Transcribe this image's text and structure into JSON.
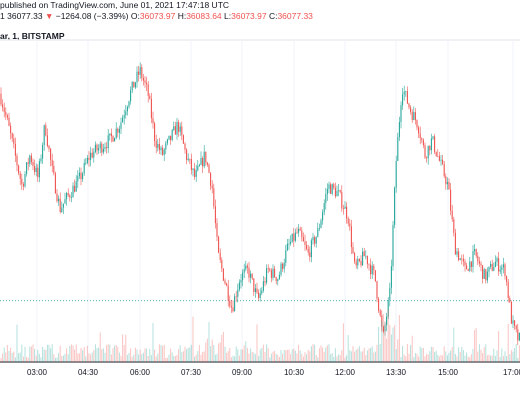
{
  "header": {
    "published_line": "published on TradingView.com, June 01, 2021 17:47:18 UTC",
    "quote_prefix": "1",
    "last": "36077.33",
    "change_arrow": "▼",
    "change": "−1264.08 (−3.39%)",
    "o_label": "O:",
    "o_value": "36073.97",
    "h_label": "H:",
    "h_value": "36083.64",
    "l_label": "L:",
    "l_value": "36073.97",
    "c_label": "C:",
    "c_value": "36077.33",
    "symbol_line": "ar, 1, BITSTAMP"
  },
  "colors": {
    "up": "#26a69a",
    "down": "#ef5350",
    "grid": "#f0f3fa",
    "axis": "#131722",
    "price_line": "#26a69a"
  },
  "chart_data": {
    "type": "candlestick",
    "interval": "1 minute",
    "exchange": "BITSTAMP",
    "x_tick_labels": [
      "03:00",
      "04:30",
      "06:00",
      "07:30",
      "09:00",
      "10:30",
      "12:00",
      "13:30",
      "15:00",
      "17:00"
    ],
    "close_path_points": [
      [
        0,
        37100
      ],
      [
        8,
        36900
      ],
      [
        15,
        36700
      ],
      [
        22,
        36500
      ],
      [
        30,
        36700
      ],
      [
        38,
        36550
      ],
      [
        45,
        36900
      ],
      [
        52,
        36600
      ],
      [
        60,
        36350
      ],
      [
        70,
        36450
      ],
      [
        80,
        36550
      ],
      [
        90,
        36700
      ],
      [
        100,
        36750
      ],
      [
        110,
        36800
      ],
      [
        120,
        36900
      ],
      [
        130,
        37100
      ],
      [
        140,
        37250
      ],
      [
        148,
        37100
      ],
      [
        155,
        36800
      ],
      [
        162,
        36700
      ],
      [
        170,
        36800
      ],
      [
        178,
        36900
      ],
      [
        186,
        36700
      ],
      [
        195,
        36550
      ],
      [
        205,
        36700
      ],
      [
        212,
        36500
      ],
      [
        218,
        36050
      ],
      [
        226,
        35850
      ],
      [
        232,
        35700
      ],
      [
        240,
        35900
      ],
      [
        248,
        35950
      ],
      [
        258,
        35750
      ],
      [
        268,
        35950
      ],
      [
        278,
        35900
      ],
      [
        288,
        36100
      ],
      [
        298,
        36200
      ],
      [
        308,
        36050
      ],
      [
        318,
        36200
      ],
      [
        328,
        36500
      ],
      [
        338,
        36450
      ],
      [
        348,
        36300
      ],
      [
        355,
        35950
      ],
      [
        365,
        36050
      ],
      [
        375,
        35900
      ],
      [
        383,
        35500
      ],
      [
        390,
        35800
      ],
      [
        396,
        36650
      ],
      [
        402,
        37150
      ],
      [
        410,
        37000
      ],
      [
        418,
        36900
      ],
      [
        425,
        36700
      ],
      [
        432,
        36800
      ],
      [
        440,
        36650
      ],
      [
        448,
        36500
      ],
      [
        455,
        36100
      ],
      [
        465,
        35950
      ],
      [
        475,
        36050
      ],
      [
        485,
        35900
      ],
      [
        495,
        36000
      ],
      [
        505,
        35950
      ],
      [
        512,
        35600
      ],
      [
        518,
        35500
      ]
    ],
    "ylim": [
      35350,
      37450
    ],
    "last_price_line": 35750
  }
}
